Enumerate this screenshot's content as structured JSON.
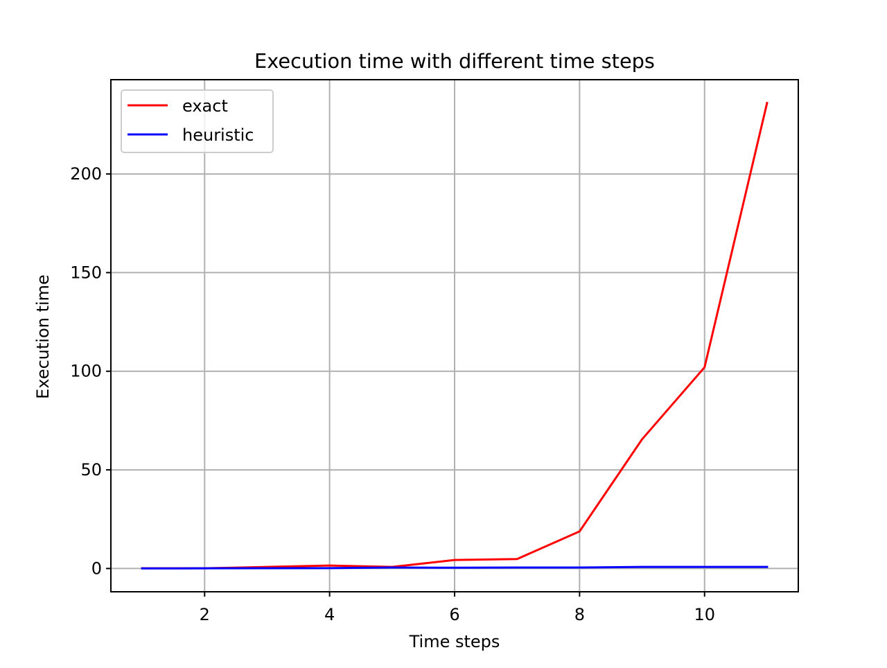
{
  "chart_data": {
    "type": "line",
    "title": "Execution time with different time steps",
    "xlabel": "Time steps",
    "ylabel": "Execution time",
    "x": [
      1,
      2,
      3,
      4,
      5,
      6,
      7,
      8,
      9,
      10,
      11
    ],
    "series": [
      {
        "name": "exact",
        "color": "#ff0000",
        "values": [
          0.1,
          0.1,
          0.8,
          1.5,
          0.8,
          4.3,
          4.8,
          18.8,
          65.5,
          102,
          236
        ]
      },
      {
        "name": "heuristic",
        "color": "#0000ff",
        "values": [
          0.05,
          0.08,
          0.15,
          0.2,
          0.5,
          0.4,
          0.5,
          0.5,
          0.8,
          0.8,
          0.8
        ]
      }
    ],
    "xlim": [
      0.5,
      11.5
    ],
    "ylim": [
      -11.8,
      247.8
    ],
    "xticks": [
      2,
      4,
      6,
      8,
      10
    ],
    "yticks": [
      0,
      50,
      100,
      150,
      200
    ],
    "grid": true,
    "legend_position": "upper left"
  }
}
